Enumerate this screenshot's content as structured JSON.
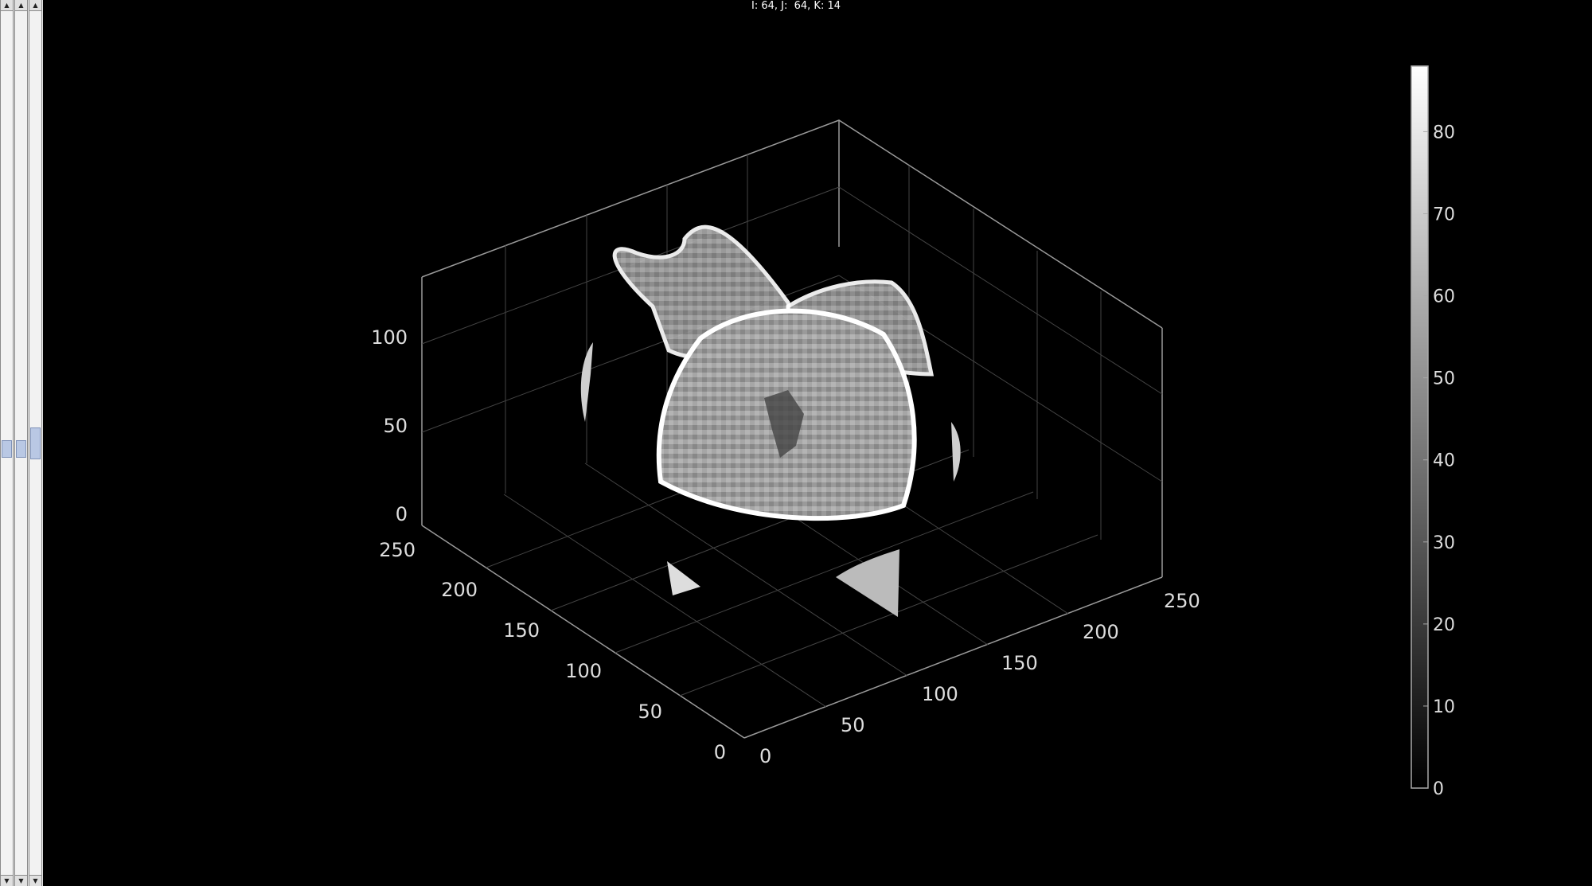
{
  "status_text": "I: 64, J:  64, K: 14",
  "sliders": [
    {
      "name": "slider-i",
      "value": 0.5
    },
    {
      "name": "slider-j",
      "value": 0.5
    },
    {
      "name": "slider-k",
      "value": 0.5
    }
  ],
  "axes": {
    "z_ticks": [
      "0",
      "50",
      "100"
    ],
    "y_ticks": [
      "0",
      "50",
      "100",
      "150",
      "200",
      "250"
    ],
    "x_ticks": [
      "0",
      "50",
      "100",
      "150",
      "200",
      "250"
    ]
  },
  "colorbar": {
    "ticks": [
      "0",
      "10",
      "20",
      "30",
      "40",
      "50",
      "60",
      "70",
      "80"
    ],
    "min": 0,
    "max": 88
  },
  "colors": {
    "background": "#000000",
    "axis": "#bdbdbd",
    "text": "#dddddd"
  }
}
